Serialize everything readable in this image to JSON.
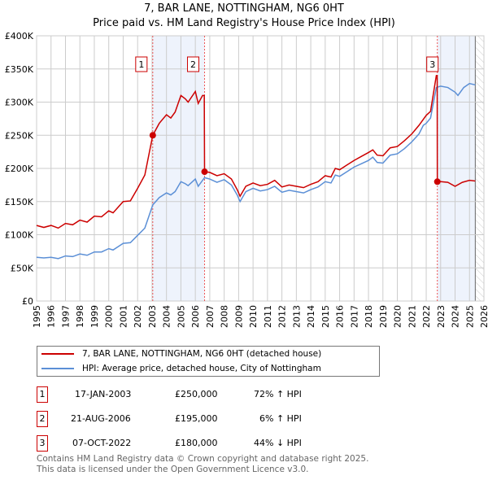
{
  "title_line1": "7, BAR LANE, NOTTINGHAM, NG6 0HT",
  "title_line2": "Price paid vs. HM Land Registry's House Price Index (HPI)",
  "chart_data": {
    "type": "line",
    "xlim": [
      1995,
      2026
    ],
    "ylim": [
      0,
      400000
    ],
    "x_ticks": [
      "1995",
      "1996",
      "1997",
      "1998",
      "1999",
      "2000",
      "2001",
      "2002",
      "2003",
      "2004",
      "2005",
      "2006",
      "2007",
      "2008",
      "2009",
      "2010",
      "2011",
      "2012",
      "2013",
      "2014",
      "2015",
      "2016",
      "2017",
      "2018",
      "2019",
      "2020",
      "2021",
      "2022",
      "2023",
      "2024",
      "2025",
      "2026"
    ],
    "y_ticks": [
      {
        "v": 0,
        "label": "£0"
      },
      {
        "v": 50000,
        "label": "£50K"
      },
      {
        "v": 100000,
        "label": "£100K"
      },
      {
        "v": 150000,
        "label": "£150K"
      },
      {
        "v": 200000,
        "label": "£200K"
      },
      {
        "v": 250000,
        "label": "£250K"
      },
      {
        "v": 300000,
        "label": "£300K"
      },
      {
        "v": 350000,
        "label": "£350K"
      },
      {
        "v": 400000,
        "label": "£400K"
      }
    ],
    "grid": true,
    "series": [
      {
        "name": "7, BAR LANE, NOTTINGHAM, NG6 0HT (detached house)",
        "color": "#cc0000",
        "points": [
          [
            1995,
            114000
          ],
          [
            1995.5,
            111000
          ],
          [
            1996,
            114000
          ],
          [
            1996.5,
            110000
          ],
          [
            1997,
            117000
          ],
          [
            1997.5,
            115000
          ],
          [
            1998,
            122000
          ],
          [
            1998.5,
            119000
          ],
          [
            1999,
            128000
          ],
          [
            1999.5,
            127000
          ],
          [
            2000,
            136000
          ],
          [
            2000.3,
            133000
          ],
          [
            2001,
            150000
          ],
          [
            2001.5,
            151000
          ],
          [
            2002,
            170000
          ],
          [
            2002.5,
            190000
          ],
          [
            2003.05,
            250000
          ],
          [
            2003.5,
            268000
          ],
          [
            2004,
            281000
          ],
          [
            2004.3,
            276000
          ],
          [
            2004.6,
            285000
          ],
          [
            2005,
            310000
          ],
          [
            2005.3,
            305000
          ],
          [
            2005.5,
            300000
          ],
          [
            2006,
            316000
          ],
          [
            2006.2,
            298000
          ],
          [
            2006.5,
            310000
          ],
          [
            2006.62,
            310000
          ],
          [
            2006.64,
            195000
          ],
          [
            2007,
            194000
          ],
          [
            2007.5,
            189000
          ],
          [
            2008,
            192000
          ],
          [
            2008.5,
            184000
          ],
          [
            2008.9,
            168000
          ],
          [
            2009.1,
            158000
          ],
          [
            2009.5,
            173000
          ],
          [
            2010,
            178000
          ],
          [
            2010.5,
            174000
          ],
          [
            2011,
            176000
          ],
          [
            2011.5,
            182000
          ],
          [
            2012,
            172000
          ],
          [
            2012.5,
            175000
          ],
          [
            2013,
            173000
          ],
          [
            2013.5,
            171000
          ],
          [
            2014,
            176000
          ],
          [
            2014.5,
            180000
          ],
          [
            2015,
            189000
          ],
          [
            2015.4,
            187000
          ],
          [
            2015.7,
            200000
          ],
          [
            2016,
            198000
          ],
          [
            2016.5,
            205000
          ],
          [
            2017,
            212000
          ],
          [
            2017.5,
            218000
          ],
          [
            2018,
            224000
          ],
          [
            2018.3,
            228000
          ],
          [
            2018.6,
            220000
          ],
          [
            2019,
            219000
          ],
          [
            2019.5,
            231000
          ],
          [
            2020,
            233000
          ],
          [
            2020.5,
            242000
          ],
          [
            2021,
            252000
          ],
          [
            2021.5,
            265000
          ],
          [
            2022,
            280000
          ],
          [
            2022.3,
            286000
          ],
          [
            2022.7,
            340000
          ],
          [
            2022.76,
            340000
          ],
          [
            2022.77,
            180000
          ],
          [
            2023,
            180000
          ],
          [
            2023.5,
            179000
          ],
          [
            2024,
            173000
          ],
          [
            2024.5,
            179000
          ],
          [
            2025,
            182000
          ],
          [
            2025.4,
            181000
          ]
        ]
      },
      {
        "name": "HPI: Average price, detached house, City of Nottingham",
        "color": "#5b8fd6",
        "points": [
          [
            1995,
            66000
          ],
          [
            1995.5,
            65000
          ],
          [
            1996,
            66000
          ],
          [
            1996.5,
            64000
          ],
          [
            1997,
            68000
          ],
          [
            1997.5,
            67000
          ],
          [
            1998,
            71000
          ],
          [
            1998.5,
            69000
          ],
          [
            1999,
            74000
          ],
          [
            1999.5,
            74000
          ],
          [
            2000,
            79000
          ],
          [
            2000.3,
            77000
          ],
          [
            2001,
            87000
          ],
          [
            2001.5,
            88000
          ],
          [
            2002,
            99000
          ],
          [
            2002.5,
            110000
          ],
          [
            2003.05,
            145000
          ],
          [
            2003.5,
            156000
          ],
          [
            2004,
            163000
          ],
          [
            2004.3,
            160000
          ],
          [
            2004.6,
            165000
          ],
          [
            2005,
            180000
          ],
          [
            2005.3,
            177000
          ],
          [
            2005.5,
            174000
          ],
          [
            2006,
            184000
          ],
          [
            2006.2,
            173000
          ],
          [
            2006.5,
            182000
          ],
          [
            2006.64,
            186000
          ],
          [
            2007,
            184000
          ],
          [
            2007.5,
            179000
          ],
          [
            2008,
            183000
          ],
          [
            2008.5,
            175000
          ],
          [
            2008.9,
            160000
          ],
          [
            2009.1,
            150000
          ],
          [
            2009.5,
            165000
          ],
          [
            2010,
            170000
          ],
          [
            2010.5,
            166000
          ],
          [
            2011,
            168000
          ],
          [
            2011.5,
            173000
          ],
          [
            2012,
            164000
          ],
          [
            2012.5,
            167000
          ],
          [
            2013,
            165000
          ],
          [
            2013.5,
            163000
          ],
          [
            2014,
            168000
          ],
          [
            2014.5,
            172000
          ],
          [
            2015,
            180000
          ],
          [
            2015.4,
            178000
          ],
          [
            2015.7,
            190000
          ],
          [
            2016,
            188000
          ],
          [
            2016.5,
            195000
          ],
          [
            2017,
            202000
          ],
          [
            2017.5,
            207000
          ],
          [
            2018,
            212000
          ],
          [
            2018.3,
            217000
          ],
          [
            2018.6,
            209000
          ],
          [
            2019,
            208000
          ],
          [
            2019.5,
            220000
          ],
          [
            2020,
            222000
          ],
          [
            2020.5,
            230000
          ],
          [
            2021,
            240000
          ],
          [
            2021.5,
            252000
          ],
          [
            2021.8,
            265000
          ],
          [
            2022,
            268000
          ],
          [
            2022.3,
            276000
          ],
          [
            2022.7,
            322000
          ],
          [
            2023,
            324000
          ],
          [
            2023.5,
            322000
          ],
          [
            2024,
            315000
          ],
          [
            2024.2,
            310000
          ],
          [
            2024.6,
            322000
          ],
          [
            2025,
            328000
          ],
          [
            2025.4,
            326000
          ]
        ]
      }
    ],
    "sales": [
      {
        "label": "1",
        "x": 2003.05,
        "y": 250000
      },
      {
        "label": "2",
        "x": 2006.64,
        "y": 195000
      },
      {
        "label": "3",
        "x": 2022.77,
        "y": 180000
      }
    ],
    "shaded_ranges": [
      [
        2003.05,
        2006.64
      ],
      [
        2022.77,
        2025.4
      ]
    ],
    "hatched_from": 2025.4
  },
  "legend": [
    "7, BAR LANE, NOTTINGHAM, NG6 0HT (detached house)",
    "HPI: Average price, detached house, City of Nottingham"
  ],
  "sales_table": [
    {
      "num": "1",
      "date": "17-JAN-2003",
      "price": "£250,000",
      "hpi": "72% ↑ HPI"
    },
    {
      "num": "2",
      "date": "21-AUG-2006",
      "price": "£195,000",
      "hpi": "6% ↑ HPI"
    },
    {
      "num": "3",
      "date": "07-OCT-2022",
      "price": "£180,000",
      "hpi": "44% ↓ HPI"
    }
  ],
  "footer": [
    "Contains HM Land Registry data © Crown copyright and database right 2025.",
    "This data is licensed under the Open Government Licence v3.0."
  ]
}
